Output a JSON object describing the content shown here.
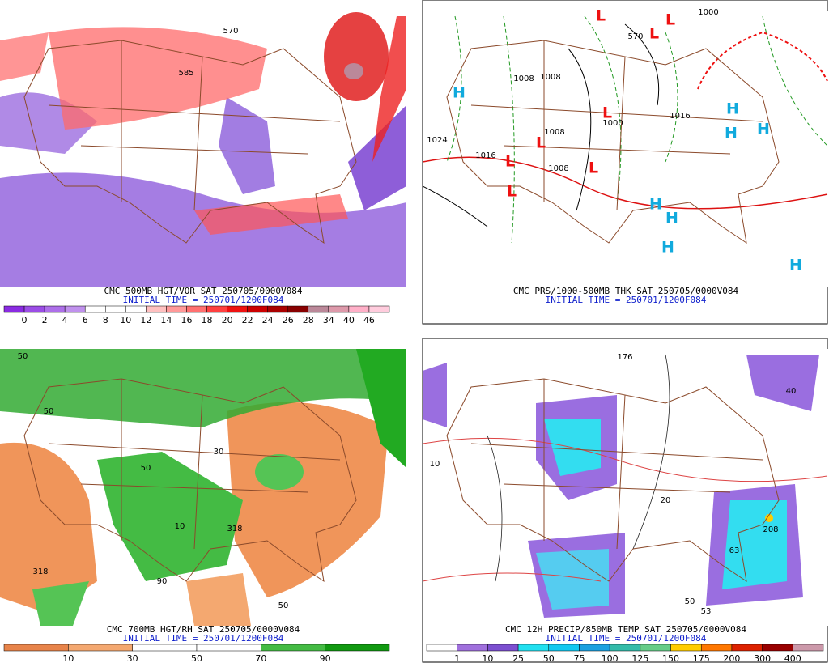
{
  "panels": [
    {
      "caption": "CMC 500MB HGT/VOR SAT 250705/0000V084",
      "initial_time": "INITIAL TIME = 250701/1200F084",
      "colorbar": {
        "ticks": [
          0,
          2,
          4,
          6,
          8,
          10,
          12,
          14,
          16,
          18,
          20,
          22,
          24,
          26,
          28,
          34,
          40,
          46
        ],
        "colors": [
          "#8a2be2",
          "#9b4de6",
          "#ad6fe9",
          "#c091ed",
          "#ffffff",
          "#ffffff",
          "#ffffff",
          "#ffc0c0",
          "#ff9999",
          "#ff7070",
          "#ff4040",
          "#ee1111",
          "#cc0000",
          "#aa0000",
          "#880000",
          "#bb8899",
          "#dd99aa",
          "#ffb0c8",
          "#ffccdd"
        ]
      },
      "labels": [
        "570",
        "585"
      ]
    },
    {
      "caption": "CMC PRS/1000-500MB THK SAT 250705/0000V084",
      "initial_time": "INITIAL TIME = 250701/1200F084",
      "labels": [
        "H",
        "H",
        "H",
        "H",
        "H",
        "H",
        "H",
        "H",
        "L",
        "L",
        "L",
        "L",
        "L",
        "L",
        "L",
        "L",
        "1024",
        "1016",
        "1008",
        "1008",
        "1000",
        "1016",
        "1008",
        "1008",
        "570",
        "1000"
      ]
    },
    {
      "caption": "CMC 700MB HGT/RH SAT 250705/0000V084",
      "initial_time": "INITIAL TIME = 250701/1200F084",
      "colorbar": {
        "ticks": [
          10,
          30,
          50,
          70,
          90
        ],
        "colors": [
          "#e8844a",
          "#f4a870",
          "#ffffff",
          "#ffffff",
          "#44bb44",
          "#119911"
        ]
      },
      "labels": [
        "50",
        "50",
        "50",
        "318",
        "318",
        "10",
        "30",
        "90",
        "50"
      ]
    },
    {
      "caption": "CMC 12H PRECIP/850MB TEMP SAT 250705/0000V084",
      "initial_time": "INITIAL TIME = 250701/1200F084",
      "colorbar": {
        "ticks": [
          1,
          10,
          25,
          50,
          75,
          100,
          125,
          150,
          175,
          200,
          300,
          400
        ],
        "colors": [
          "#ffffff",
          "#a070dd",
          "#7c4fd0",
          "#22e0f0",
          "#11c8f0",
          "#1aa0e0",
          "#33bbaa",
          "#66cc88",
          "#ffcc00",
          "#ff7700",
          "#dd2200",
          "#990000",
          "#cc99aa"
        ]
      },
      "labels": [
        "176",
        "208",
        "20",
        "10",
        "40",
        "50",
        "63",
        "53"
      ]
    }
  ]
}
